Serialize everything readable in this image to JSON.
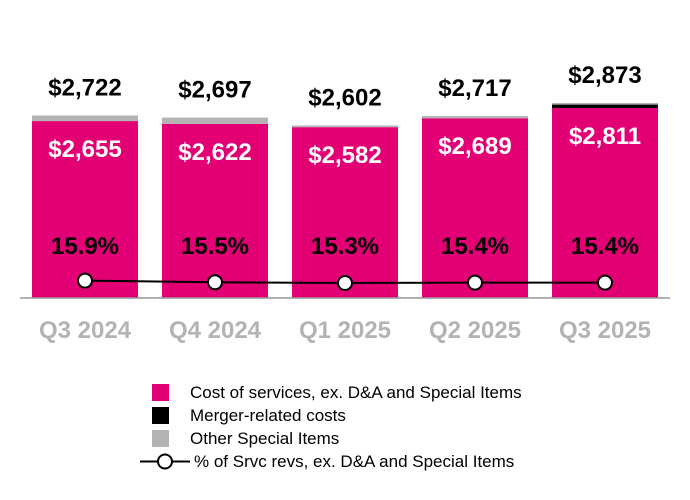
{
  "chart_data": {
    "type": "bar",
    "stacked": true,
    "categories": [
      "Q3 2024",
      "Q4 2024",
      "Q1 2025",
      "Q2 2025",
      "Q3 2025"
    ],
    "series": [
      {
        "name": "Cost of services, ex. D&A and Special Items",
        "color": "#e20074",
        "values": [
          2655,
          2622,
          2582,
          2689,
          2811
        ],
        "labels": [
          "$2,655",
          "$2,622",
          "$2,582",
          "$2,689",
          "$2,811"
        ]
      },
      {
        "name": "Merger-related costs",
        "color": "#000000",
        "values": [
          0,
          0,
          0,
          0,
          42
        ]
      },
      {
        "name": "Other Special Items",
        "color": "#b3b3b3",
        "values": [
          67,
          75,
          20,
          28,
          20
        ]
      }
    ],
    "totals": [
      2722,
      2697,
      2602,
      2717,
      2873
    ],
    "total_labels": [
      "$2,722",
      "$2,697",
      "$2,602",
      "$2,717",
      "$2,873"
    ],
    "line_series": {
      "name": "% of Srvc revs, ex. D&A and Special Items",
      "values": [
        15.9,
        15.5,
        15.3,
        15.4,
        15.4
      ],
      "labels": [
        "15.9%",
        "15.5%",
        "15.3%",
        "15.4%",
        "15.4%"
      ]
    },
    "grid": false,
    "legend_position": "bottom",
    "category_label_color": "#b3b3b3"
  }
}
